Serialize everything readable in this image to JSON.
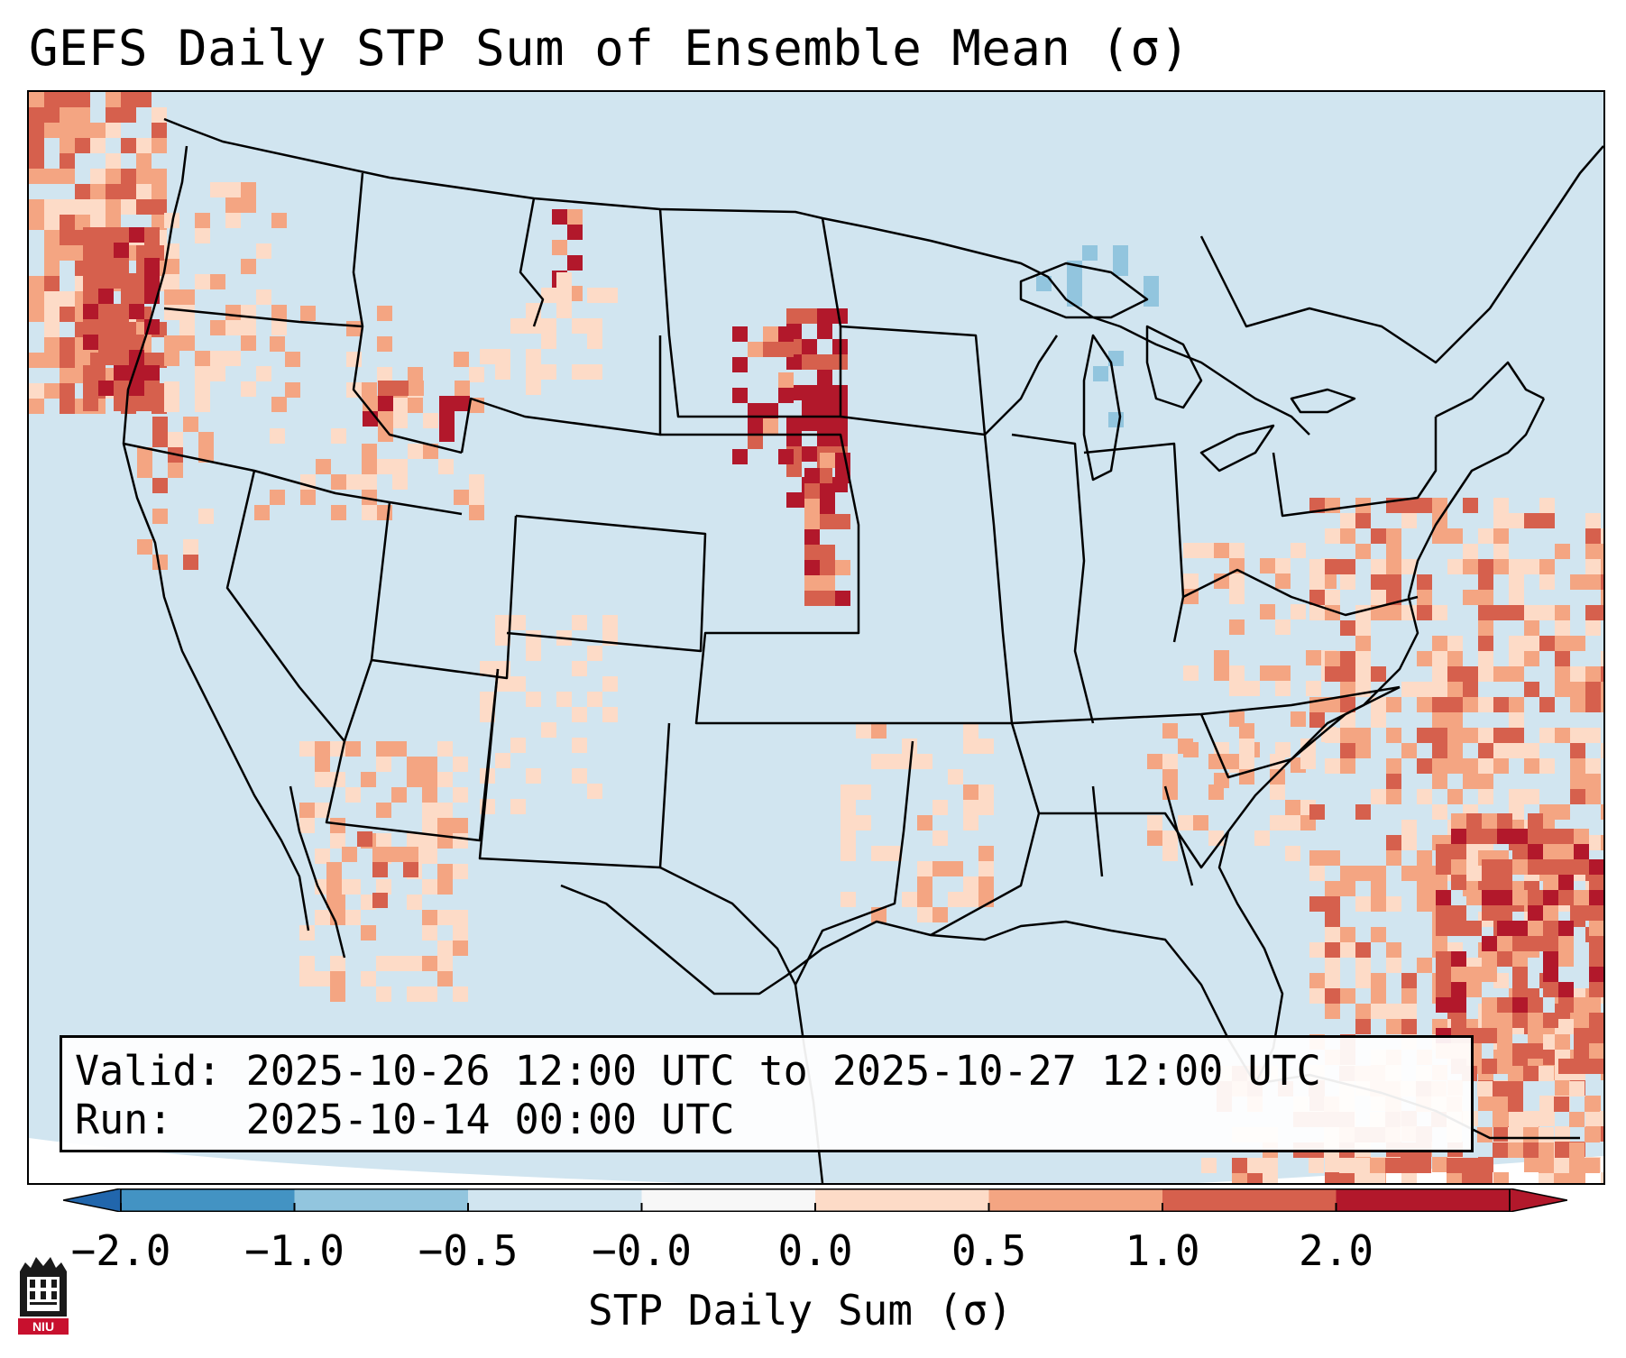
{
  "title": "GEFS Daily STP Sum of Ensemble Mean (σ)",
  "info": {
    "valid_label": "Valid:",
    "valid_value": "2025-10-26 12:00 UTC to 2025-10-27 12:00 UTC",
    "run_label": "Run:",
    "run_value": "2025-10-14 00:00 UTC"
  },
  "colorbar": {
    "label": "STP Daily Sum (σ)",
    "ticks": [
      "−2.0",
      "−1.0",
      "−0.5",
      "−0.0",
      "0.0",
      "0.5",
      "1.0",
      "2.0"
    ],
    "colors": [
      "#4393c3",
      "#92c5de",
      "#d1e5f0",
      "#f7f7f7",
      "#fddbc7",
      "#f4a582",
      "#d6604d",
      "#b2182b"
    ],
    "under_color": "#2166ac",
    "over_color": "#b2182b"
  },
  "map": {
    "background_color": "#d1e5f0",
    "border_color": "#000000"
  },
  "logo": {
    "text": "NIU"
  }
}
